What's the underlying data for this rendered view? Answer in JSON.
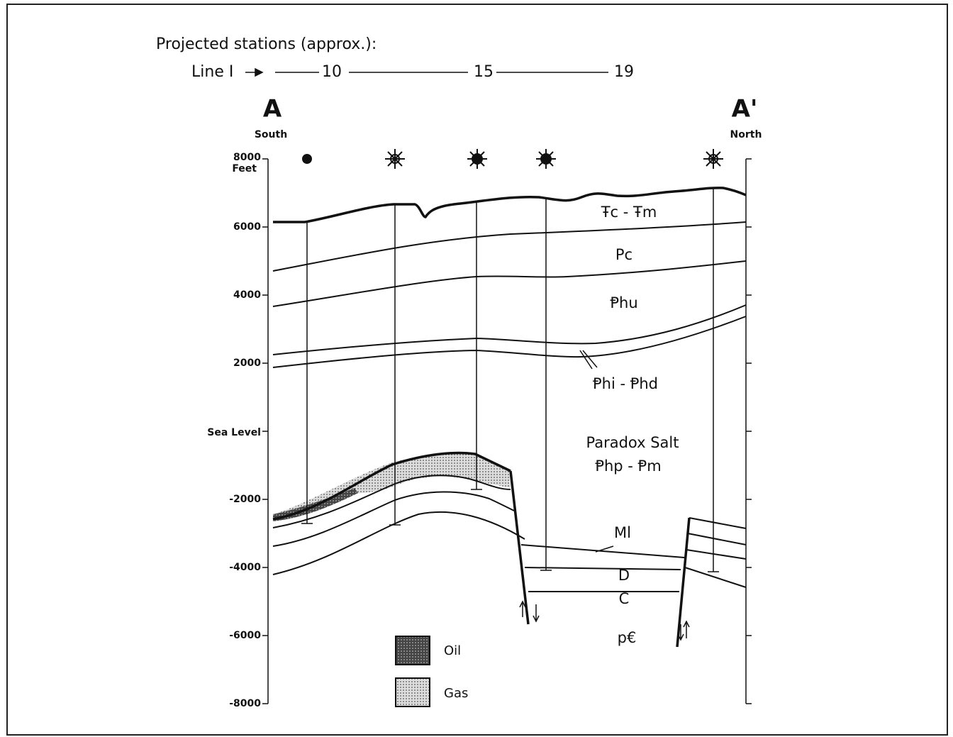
{
  "header": {
    "title": "Projected stations (approx.):",
    "line_label": "Line I",
    "stations": [
      "10",
      "15",
      "19"
    ]
  },
  "ends": {
    "left": {
      "letter": "A",
      "direction": "South"
    },
    "right": {
      "letter": "A'",
      "direction": "North"
    }
  },
  "axis": {
    "unit": "Feet",
    "sea_level": "Sea Level",
    "labels": [
      "8000",
      "6000",
      "4000",
      "2000",
      "-2000",
      "-4000",
      "-6000",
      "-8000"
    ]
  },
  "formations": [
    "Ŧc - Ŧm",
    "Pc",
    "Ᵽhu",
    "Ᵽhi - Ᵽhd",
    "Paradox Salt",
    "Ᵽhp - Ᵽm",
    "Ml",
    "D",
    "C",
    "p€"
  ],
  "legend": [
    "Oil",
    "Gas"
  ]
}
